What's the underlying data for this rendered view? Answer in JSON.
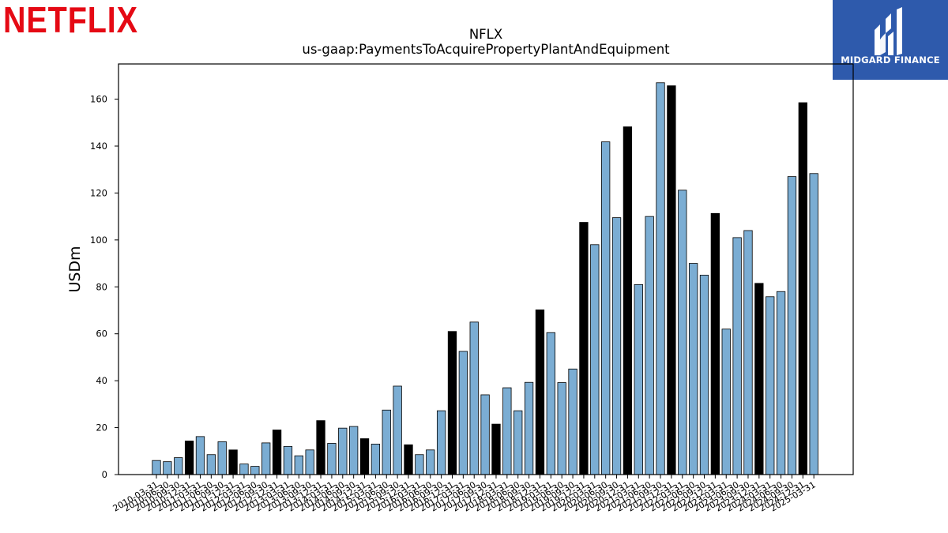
{
  "brand": {
    "left_logo": "NETFLIX",
    "right_logo": "MIDGARD FINANCE"
  },
  "chart_data": {
    "type": "bar",
    "title": "NFLX",
    "subtitle": "us-gaap:PaymentsToAcquirePropertyPlantAndEquipment",
    "xlabel": "",
    "ylabel": "USDm",
    "ylim": [
      0,
      175
    ],
    "yticks": [
      0,
      20,
      40,
      60,
      80,
      100,
      120,
      140,
      160
    ],
    "grid": false,
    "colors": {
      "quarter": "#7BADD3",
      "year_end": "#000000",
      "edge": "#000000"
    },
    "categories": [
      "2010-03-31",
      "2010-06-30",
      "2010-09-30",
      "2010-12-31",
      "2011-03-31",
      "2011-06-30",
      "2011-09-30",
      "2011-12-31",
      "2012-03-31",
      "2012-06-30",
      "2012-09-30",
      "2012-12-31",
      "2013-03-31",
      "2013-06-30",
      "2013-09-30",
      "2013-12-31",
      "2014-03-31",
      "2014-06-30",
      "2014-09-30",
      "2014-12-31",
      "2015-03-31",
      "2015-06-30",
      "2015-09-30",
      "2015-12-31",
      "2016-03-31",
      "2016-06-30",
      "2016-09-30",
      "2016-12-31",
      "2017-03-31",
      "2017-06-30",
      "2017-09-30",
      "2017-12-31",
      "2018-03-31",
      "2018-06-30",
      "2018-09-30",
      "2018-12-31",
      "2019-03-31",
      "2019-06-30",
      "2019-09-30",
      "2019-12-31",
      "2020-03-31",
      "2020-06-30",
      "2020-09-30",
      "2020-12-31",
      "2021-03-31",
      "2021-06-30",
      "2021-09-30",
      "2021-12-31",
      "2022-03-31",
      "2022-06-30",
      "2022-09-30",
      "2022-12-31",
      "2023-03-31",
      "2023-06-30",
      "2023-09-30",
      "2023-12-31",
      "2024-03-31",
      "2024-06-30",
      "2024-09-30",
      "2024-12-31",
      "2025-03-31"
    ],
    "values": [
      6.0,
      5.5,
      7.2,
      14.3,
      16.2,
      8.5,
      14.0,
      10.5,
      4.5,
      3.5,
      13.5,
      19.0,
      12.0,
      8.0,
      10.5,
      23.0,
      13.3,
      19.8,
      20.5,
      15.3,
      13.0,
      27.5,
      37.7,
      12.7,
      8.5,
      10.5,
      27.2,
      61.0,
      52.5,
      65.0,
      34.0,
      21.5,
      37.0,
      27.2,
      39.3,
      70.2,
      60.5,
      39.2,
      45.0,
      107.5,
      98.0,
      141.8,
      109.5,
      148.2,
      81.0,
      110.0,
      167.0,
      165.7,
      121.2,
      90.0,
      85.0,
      111.3,
      62.0,
      101.0,
      104.0,
      81.5,
      75.8,
      78.0,
      127.0,
      158.5,
      128.3
    ],
    "year_end_flags": [
      0,
      0,
      0,
      1,
      0,
      0,
      0,
      1,
      0,
      0,
      0,
      1,
      0,
      0,
      0,
      1,
      0,
      0,
      0,
      1,
      0,
      0,
      0,
      1,
      0,
      0,
      0,
      1,
      0,
      0,
      0,
      1,
      0,
      0,
      0,
      1,
      0,
      0,
      0,
      1,
      0,
      0,
      0,
      1,
      0,
      0,
      0,
      1,
      0,
      0,
      0,
      1,
      0,
      0,
      0,
      1,
      0,
      0,
      0,
      1,
      0
    ]
  }
}
